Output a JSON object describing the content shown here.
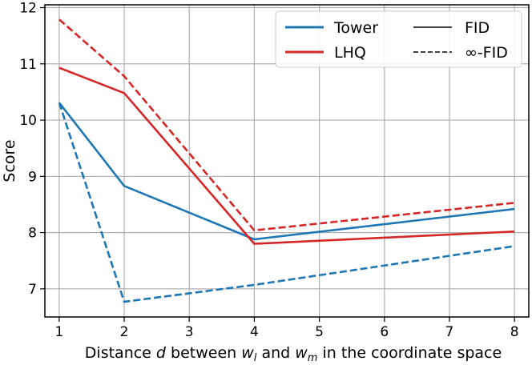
{
  "chart_data": {
    "type": "line",
    "xlabel_parts": [
      "Distance ",
      "d",
      " between ",
      "w",
      "l",
      " and ",
      "w",
      "m",
      " in the coordinate space"
    ],
    "ylabel": "Score",
    "x_ticks": [
      1,
      2,
      3,
      4,
      5,
      6,
      7,
      8
    ],
    "y_ticks": [
      7,
      8,
      9,
      10,
      11,
      12
    ],
    "xlim": [
      0.78,
      8.22
    ],
    "ylim": [
      6.5,
      12.05
    ],
    "grid": true,
    "legend_position": "top-right",
    "legend": {
      "series": [
        {
          "name": "Tower",
          "color": "#1f77b4"
        },
        {
          "name": "LHQ",
          "color": "#d62728"
        }
      ],
      "styles": [
        {
          "name": "FID",
          "dash": "solid"
        },
        {
          "name": "∞-FID",
          "dash": "dashed"
        }
      ]
    },
    "series": [
      {
        "model": "Tower",
        "metric": "FID",
        "color": "#1f77b4",
        "dash": "solid",
        "x": [
          1,
          2,
          4,
          8
        ],
        "y": [
          10.31,
          8.83,
          7.88,
          8.42
        ]
      },
      {
        "model": "Tower",
        "metric": "∞-FID",
        "color": "#1f77b4",
        "dash": "dashed",
        "x": [
          1,
          2,
          4,
          8
        ],
        "y": [
          10.31,
          6.77,
          7.07,
          7.76
        ]
      },
      {
        "model": "LHQ",
        "metric": "FID",
        "color": "#d62728",
        "dash": "solid",
        "x": [
          1,
          2,
          4,
          8
        ],
        "y": [
          10.93,
          10.48,
          7.8,
          8.02
        ]
      },
      {
        "model": "LHQ",
        "metric": "∞-FID",
        "color": "#d62728",
        "dash": "dashed",
        "x": [
          1,
          2,
          4,
          8
        ],
        "y": [
          11.79,
          10.78,
          8.04,
          8.53
        ]
      }
    ]
  }
}
